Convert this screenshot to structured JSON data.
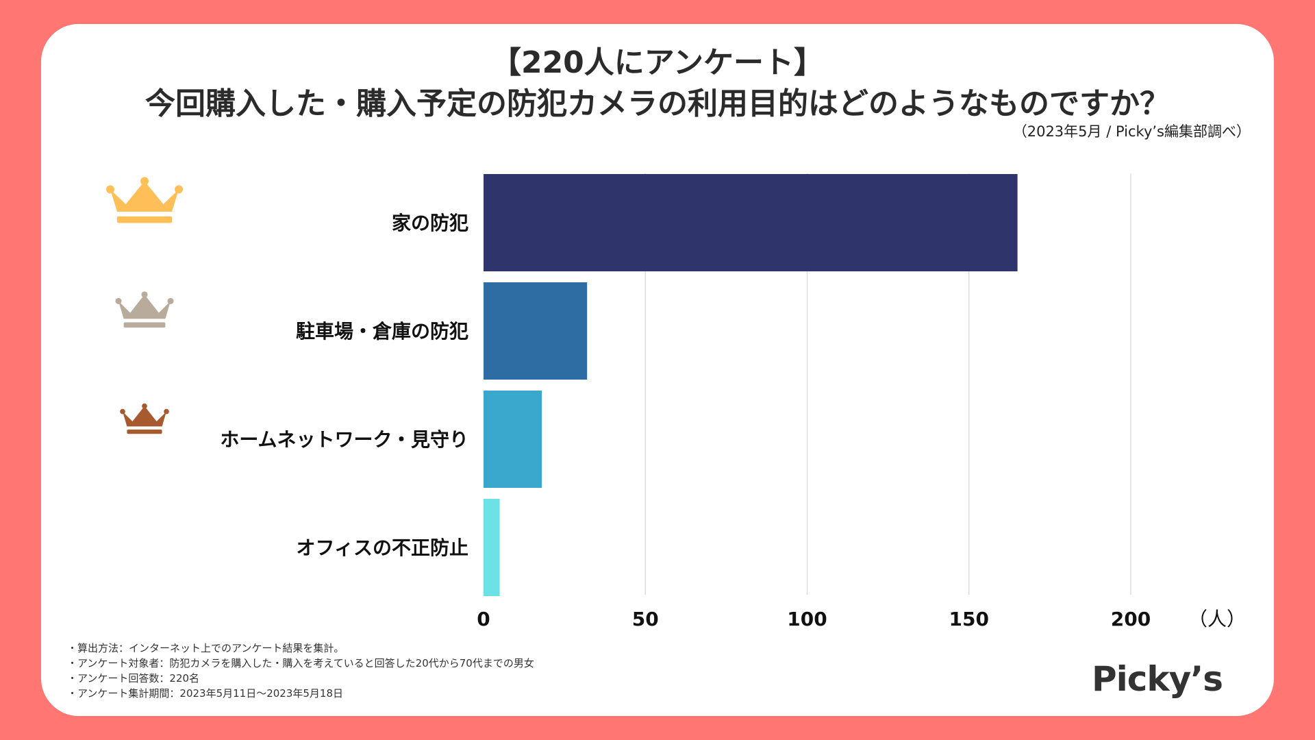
{
  "header": {
    "title_line1": "【220人にアンケート】",
    "title_line2": "今回購入した・購入予定の防犯カメラの利用目的はどのようなものですか？",
    "source": "（2023年5月 / Picky’s編集部調べ）"
  },
  "chart_data": {
    "type": "bar",
    "orientation": "horizontal",
    "title": "今回購入した・購入予定の防犯カメラの利用目的はどのようなものですか？",
    "categories": [
      "家の防犯",
      "駐車場・倉庫の防犯",
      "ホームネットワーク・見守り",
      "オフィスの不正防止"
    ],
    "values": [
      165,
      32,
      18,
      5
    ],
    "colors": [
      "#2f356b",
      "#2e6da4",
      "#3aa7cd",
      "#6ce2e6"
    ],
    "xlim": [
      0,
      200
    ],
    "xticks": [
      "0",
      "50",
      "100",
      "150",
      "200"
    ],
    "xlabel": "（人）",
    "grid": true,
    "rank_icons": [
      "crown-gold-icon",
      "crown-silver-icon",
      "crown-bronze-icon"
    ],
    "rank_colors": [
      "#ffbf58",
      "#b8ab9c",
      "#a65a2e"
    ]
  },
  "notes": [
    "・算出方法：インターネット上でのアンケート結果を集計。",
    "・アンケート対象者：防犯カメラを購入した・購入を考えていると回答した20代から70代までの男女",
    "・アンケート回答数：220名",
    "・アンケート集計期間：2023年5月11日〜2023年5月18日"
  ],
  "brand": "Picky’s"
}
